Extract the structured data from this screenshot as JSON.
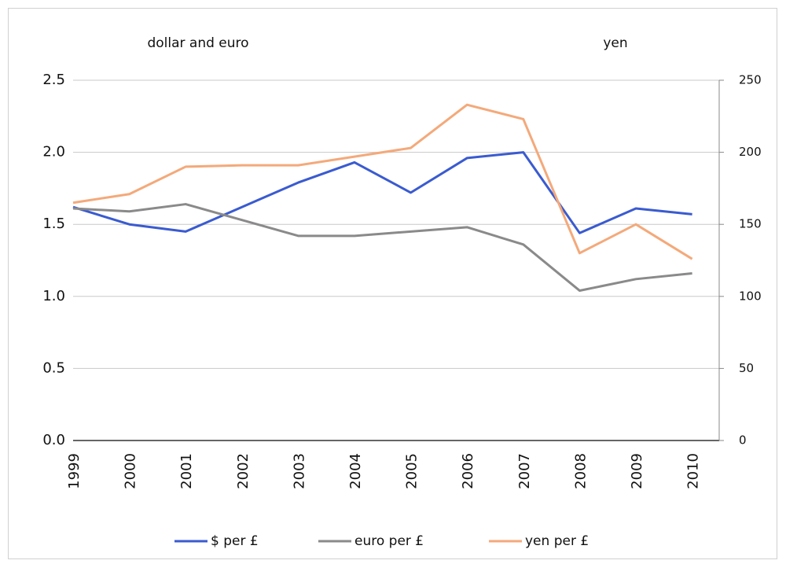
{
  "chart_data": {
    "type": "line",
    "y_axis_title": "dollar and euro",
    "y2_axis_title": "yen",
    "categories": [
      "1999",
      "2000",
      "2001",
      "2002",
      "2003",
      "2004",
      "2005",
      "2006",
      "2007",
      "2008",
      "2009",
      "2010"
    ],
    "series": [
      {
        "name": "$ per £",
        "color": "#3a5bd0",
        "values": [
          1.62,
          1.5,
          1.45,
          1.62,
          1.79,
          1.93,
          1.72,
          1.96,
          2.0,
          1.44,
          1.61,
          1.57
        ]
      },
      {
        "name": "euro per £",
        "color": "#8a8a8a",
        "values": [
          1.61,
          1.59,
          1.64,
          1.53,
          1.42,
          1.42,
          1.45,
          1.48,
          1.36,
          1.04,
          1.12,
          1.16
        ]
      },
      {
        "name": "yen per £",
        "color": "#f4a97a",
        "axis": "y2",
        "values": [
          165,
          171,
          190,
          191,
          191,
          197,
          203,
          233,
          223,
          130,
          150,
          126
        ]
      }
    ],
    "ylim": [
      0,
      2.5
    ],
    "yticks": [
      {
        "value": 0,
        "label": "0.0"
      },
      0.5,
      {
        "value": 1,
        "label": "1.0"
      },
      1.5,
      {
        "value": 2,
        "label": "2.0"
      },
      2.5
    ],
    "y2lim": [
      0,
      250
    ],
    "y2ticks": [
      0,
      50,
      100,
      150,
      200,
      250
    ],
    "grid": true,
    "legend": "bottom"
  }
}
